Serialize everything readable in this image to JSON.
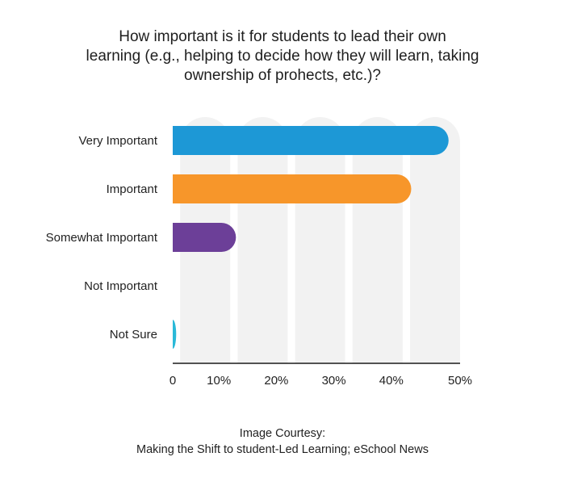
{
  "title_lines": [
    "How important is it for students to lead their own",
    "learning (e.g., helping to decide how they will learn, taking",
    "ownership of prohects, etc.)?"
  ],
  "credit": {
    "line1": "Image Courtesy:",
    "line2": "Making the Shift to student-Led Learning; eSchool News"
  },
  "chart_data": {
    "type": "bar",
    "orientation": "horizontal",
    "title": "How important is it for students to lead their own learning (e.g., helping to decide how they will learn, taking ownership of prohects, etc.)?",
    "categories": [
      "Very Important",
      "Important",
      "Somewhat Important",
      "Not Important",
      "Not Sure"
    ],
    "values": [
      48,
      41.5,
      11,
      0,
      0.6
    ],
    "colors": [
      "#1d98d6",
      "#f7962a",
      "#6c3f98",
      "#cccccc",
      "#2ab9d8"
    ],
    "xlim": [
      0,
      50
    ],
    "tick_values": [
      0,
      10,
      20,
      30,
      40,
      50
    ],
    "tick_labels": [
      "0",
      "10%",
      "20%",
      "30%",
      "40%",
      "50%"
    ],
    "background_column_color": "#f2f2f2",
    "grid": false,
    "legend": "none"
  }
}
